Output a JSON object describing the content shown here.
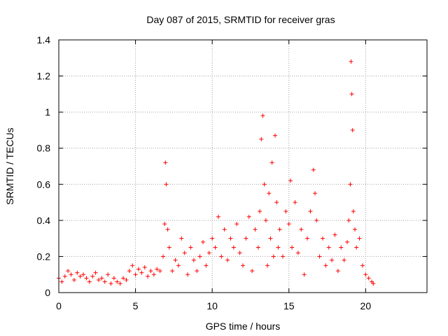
{
  "chart_data": {
    "type": "scatter",
    "title": "Day 087 of 2015, SRMTID for receiver gras",
    "xlabel": "GPS time / hours",
    "ylabel": "SRMTID / TECUs",
    "xlim": [
      0,
      24
    ],
    "ylim": [
      0,
      1.4
    ],
    "xticks": [
      0,
      5,
      10,
      15,
      20
    ],
    "yticks": [
      0,
      0.2,
      0.4,
      0.6,
      0.8,
      1,
      1.2,
      1.4
    ],
    "xtick_labels": [
      "0",
      "5",
      "10",
      "15",
      "20"
    ],
    "ytick_labels": [
      "0",
      "0.2",
      "0.4",
      "0.6",
      "0.8",
      "1",
      "1.2",
      "1.4"
    ],
    "grid": true,
    "marker": "+",
    "series": [
      {
        "name": "gras",
        "color": "#ff0000",
        "x": [
          0.0,
          0.2,
          0.4,
          0.6,
          0.8,
          1.0,
          1.2,
          1.4,
          1.6,
          1.8,
          2.0,
          2.2,
          2.4,
          2.6,
          2.8,
          3.0,
          3.2,
          3.4,
          3.6,
          3.8,
          4.0,
          4.2,
          4.4,
          4.6,
          4.8,
          5.0,
          5.2,
          5.4,
          5.6,
          5.8,
          6.0,
          6.2,
          6.4,
          6.6,
          6.8,
          6.9,
          6.95,
          7.0,
          7.1,
          7.2,
          7.4,
          7.6,
          7.8,
          8.0,
          8.2,
          8.4,
          8.6,
          8.8,
          9.0,
          9.2,
          9.4,
          9.6,
          9.8,
          10.0,
          10.2,
          10.4,
          10.6,
          10.8,
          11.0,
          11.2,
          11.4,
          11.6,
          11.8,
          12.0,
          12.2,
          12.4,
          12.6,
          12.8,
          13.0,
          13.1,
          13.2,
          13.3,
          13.4,
          13.5,
          13.6,
          13.7,
          13.8,
          13.9,
          14.0,
          14.1,
          14.2,
          14.3,
          14.4,
          14.6,
          14.8,
          15.0,
          15.1,
          15.2,
          15.4,
          15.6,
          15.8,
          16.0,
          16.2,
          16.4,
          16.6,
          16.7,
          16.8,
          17.0,
          17.2,
          17.4,
          17.6,
          17.8,
          18.0,
          18.2,
          18.4,
          18.6,
          18.8,
          18.9,
          19.0,
          19.05,
          19.1,
          19.15,
          19.2,
          19.3,
          19.4,
          19.6,
          19.8,
          20.0,
          20.2,
          20.4,
          20.5
        ],
        "values": [
          0.08,
          0.06,
          0.09,
          0.12,
          0.1,
          0.07,
          0.11,
          0.09,
          0.1,
          0.08,
          0.06,
          0.09,
          0.11,
          0.07,
          0.08,
          0.06,
          0.1,
          0.05,
          0.08,
          0.06,
          0.05,
          0.08,
          0.07,
          0.12,
          0.15,
          0.1,
          0.13,
          0.11,
          0.14,
          0.09,
          0.12,
          0.1,
          0.13,
          0.12,
          0.2,
          0.38,
          0.72,
          0.6,
          0.35,
          0.25,
          0.12,
          0.18,
          0.15,
          0.3,
          0.22,
          0.1,
          0.25,
          0.18,
          0.12,
          0.2,
          0.28,
          0.15,
          0.22,
          0.3,
          0.25,
          0.42,
          0.2,
          0.35,
          0.18,
          0.3,
          0.25,
          0.38,
          0.22,
          0.15,
          0.3,
          0.42,
          0.12,
          0.35,
          0.25,
          0.45,
          0.85,
          0.98,
          0.6,
          0.4,
          0.15,
          0.55,
          0.3,
          0.72,
          0.2,
          0.87,
          0.5,
          0.25,
          0.35,
          0.2,
          0.45,
          0.38,
          0.62,
          0.25,
          0.5,
          0.22,
          0.35,
          0.1,
          0.3,
          0.45,
          0.68,
          0.55,
          0.4,
          0.2,
          0.3,
          0.15,
          0.25,
          0.18,
          0.32,
          0.12,
          0.25,
          0.18,
          0.28,
          0.4,
          0.6,
          1.28,
          1.1,
          0.9,
          0.45,
          0.35,
          0.25,
          0.3,
          0.15,
          0.1,
          0.08,
          0.06,
          0.05
        ]
      }
    ]
  }
}
